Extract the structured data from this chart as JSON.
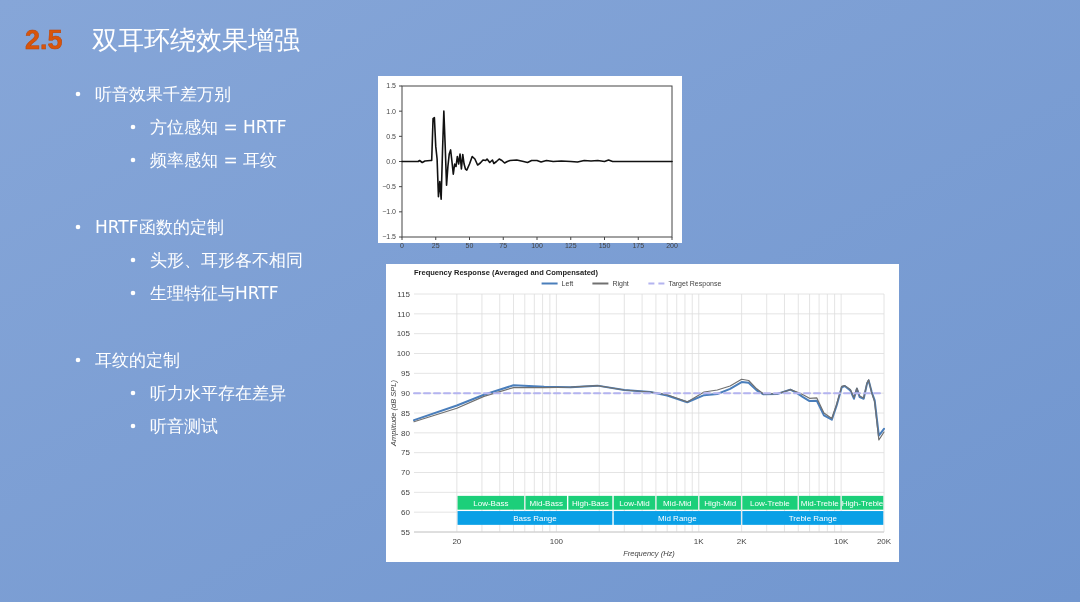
{
  "chart_data": [
    {
      "type": "other",
      "subtitle": "2.5",
      "title": "双耳环绕效果增强",
      "annotations": [
        "听音效果千差万别",
        "方位感知 = HRTF",
        "频率感知 = 耳纹",
        "HRTF函数的定制",
        "头形、耳形各不相同",
        "生理特征与HRTF",
        "耳纹的定制",
        "听力水平存在差异",
        "听音测试"
      ]
    },
    {
      "type": "line",
      "x": [
        0,
        12,
        13,
        15,
        17,
        21,
        22,
        23,
        24,
        25,
        26,
        27,
        28,
        29,
        30,
        31,
        32,
        33,
        34,
        35,
        36,
        37,
        38,
        39,
        40,
        41,
        42,
        43,
        44,
        45,
        46,
        47,
        48,
        50,
        52,
        54,
        56,
        58,
        60,
        62,
        63,
        65,
        67,
        68,
        70,
        72,
        74,
        76,
        78,
        80,
        85,
        90,
        93,
        96,
        100,
        103,
        107,
        112,
        118,
        125,
        130,
        135,
        140,
        145,
        150,
        153,
        156,
        160,
        170,
        180,
        190,
        200
      ],
      "series": [
        {
          "color": "#111111",
          "values": [
            0,
            0,
            0.02,
            -0.02,
            0.01,
            0.02,
            0.02,
            0.85,
            0.87,
            0.3,
            0.05,
            -0.7,
            -0.4,
            -0.75,
            0.2,
            1.0,
            0.3,
            -0.47,
            -0.1,
            0.15,
            0.23,
            0,
            -0.25,
            -0.05,
            -0.1,
            0.1,
            -0.05,
            0.15,
            -0.15,
            0.14,
            -0.05,
            -0.15,
            -0.17,
            -0.05,
            0.1,
            0.05,
            -0.07,
            -0.03,
            0.03,
            0.02,
            0.05,
            -0.02,
            0.03,
            -0.04,
            0,
            0.05,
            0.02,
            -0.03,
            0,
            0.02,
            0.03,
            0,
            -0.02,
            0.02,
            0.02,
            -0.01,
            0.02,
            0,
            0.01,
            0,
            -0.01,
            0.02,
            0.01,
            0.02,
            0,
            0.03,
            0,
            0,
            0,
            0,
            0,
            0
          ]
        }
      ],
      "xlim": [
        0,
        200
      ],
      "xticks": [
        0,
        25,
        50,
        75,
        100,
        125,
        150,
        175,
        200
      ],
      "ylim": [
        -1.5,
        1.5
      ],
      "yticks": [
        {
          "value": -1.5,
          "label": "−1.5"
        },
        {
          "value": -1,
          "label": "−1.0"
        },
        {
          "value": -0.5,
          "label": "−0.5"
        },
        {
          "value": 0,
          "label": "0.0"
        },
        {
          "value": 0.5,
          "label": "0.5"
        },
        {
          "value": 1,
          "label": "1.0"
        },
        {
          "value": 1.5,
          "label": "1.5"
        }
      ],
      "grid": false,
      "legend": false
    },
    {
      "type": "line",
      "title": "Frequency Response (Averaged and Compensated)",
      "xlabel": "Frequency (Hz)",
      "ylabel": "Amplitude (dB SPL)",
      "log": "x",
      "x": [
        10,
        20,
        31,
        50,
        82,
        126,
        194,
        300,
        458,
        600,
        830,
        1090,
        1350,
        1660,
        2000,
        2240,
        2550,
        2850,
        3550,
        4400,
        4900,
        5400,
        6000,
        6750,
        7570,
        8600,
        9300,
        10100,
        10600,
        11600,
        12300,
        12900,
        13500,
        14400,
        15200,
        15600,
        16400,
        17200,
        18400,
        20000
      ],
      "series": [
        {
          "name": "Left",
          "color": "#4a7ebb",
          "values": [
            83.2,
            86.9,
            89.6,
            92.0,
            91.6,
            91.5,
            91.9,
            90.8,
            90.3,
            89.4,
            87.7,
            89.5,
            89.8,
            91.1,
            92.8,
            92.6,
            90.7,
            89.7,
            89.8,
            90.9,
            90.0,
            89.0,
            88.0,
            88.1,
            84.4,
            83.3,
            86.9,
            91.5,
            91.8,
            90.7,
            88.6,
            91.1,
            89.0,
            88.6,
            92.4,
            93.2,
            90.3,
            88.2,
            79.3,
            81.0
          ]
        },
        {
          "name": "Right",
          "color": "#707070",
          "values": [
            82.8,
            86.2,
            89.2,
            91.4,
            91.4,
            91.5,
            91.9,
            90.8,
            90.3,
            89.6,
            87.8,
            90.3,
            90.8,
            91.8,
            93.5,
            93.2,
            91.1,
            89.8,
            89.8,
            90.9,
            90.3,
            89.6,
            88.7,
            88.8,
            85.0,
            83.6,
            87.2,
            91.7,
            91.9,
            90.9,
            88.9,
            91.3,
            89.3,
            88.8,
            92.6,
            93.4,
            90.0,
            87.8,
            78.2,
            80.2
          ]
        },
        {
          "name": "Target Response",
          "color": "#b4b4f0",
          "line_style": "dashed",
          "x": [
            10,
            20000
          ],
          "values": [
            90,
            90
          ]
        }
      ],
      "xlim": [
        10,
        20000
      ],
      "xticks": [
        20,
        {
          "value": 30,
          "label": null
        },
        {
          "value": 40,
          "label": null
        },
        {
          "value": 50,
          "label": null
        },
        {
          "value": 60,
          "label": null
        },
        {
          "value": 70,
          "label": null
        },
        {
          "value": 80,
          "label": null
        },
        {
          "value": 90,
          "label": null
        },
        100,
        {
          "value": 200,
          "label": null
        },
        {
          "value": 300,
          "label": null
        },
        {
          "value": 400,
          "label": null
        },
        {
          "value": 500,
          "label": null
        },
        {
          "value": 600,
          "label": null
        },
        {
          "value": 700,
          "label": null
        },
        {
          "value": 800,
          "label": null
        },
        {
          "value": 900,
          "label": null
        },
        {
          "value": 1000,
          "label": "1K"
        },
        {
          "value": 2000,
          "label": "2K"
        },
        {
          "value": 3000,
          "label": null
        },
        {
          "value": 4000,
          "label": null
        },
        {
          "value": 5000,
          "label": null
        },
        {
          "value": 6000,
          "label": null
        },
        {
          "value": 7000,
          "label": null
        },
        {
          "value": 8000,
          "label": null
        },
        {
          "value": 9000,
          "label": null
        },
        {
          "value": 10000,
          "label": "10K"
        },
        {
          "value": 20000,
          "label": "20K"
        }
      ],
      "ylim": [
        55,
        115
      ],
      "yticks": [
        55,
        60,
        65,
        70,
        75,
        80,
        85,
        90,
        95,
        100,
        105,
        110,
        115
      ],
      "grid": true,
      "legend": "top",
      "bands": [
        {
          "axis": "x",
          "from": 20,
          "to": 60,
          "label": "Low-Bass",
          "color": "#1ccf7a"
        },
        {
          "axis": "x",
          "from": 60,
          "to": 120,
          "label": "Mid-Bass",
          "color": "#1ccf7a"
        },
        {
          "axis": "x",
          "from": 120,
          "to": 250,
          "label": "High-Bass",
          "color": "#1ccf7a"
        },
        {
          "axis": "x",
          "from": 250,
          "to": 500,
          "label": "Low-Mid",
          "color": "#1ccf7a"
        },
        {
          "axis": "x",
          "from": 500,
          "to": 1000,
          "label": "Mid-Mid",
          "color": "#1ccf7a"
        },
        {
          "axis": "x",
          "from": 1000,
          "to": 2000,
          "label": "High-Mid",
          "color": "#1ccf7a"
        },
        {
          "axis": "x",
          "from": 2000,
          "to": 5000,
          "label": "Low-Treble",
          "color": "#1ccf7a"
        },
        {
          "axis": "x",
          "from": 5000,
          "to": 10000,
          "label": "Mid-Treble",
          "color": "#1ccf7a"
        },
        {
          "axis": "x",
          "from": 10000,
          "to": 20000,
          "label": "High-Treble",
          "color": "#1ccf7a"
        },
        {
          "axis": "x",
          "from": 20,
          "to": 250,
          "label": "Bass Range",
          "color": "#0aa0e6"
        },
        {
          "axis": "x",
          "from": 250,
          "to": 2000,
          "label": "Mid Range",
          "color": "#0aa0e6"
        },
        {
          "axis": "x",
          "from": 2000,
          "to": 20000,
          "label": "Treble Range",
          "color": "#0aa0e6"
        }
      ]
    }
  ]
}
